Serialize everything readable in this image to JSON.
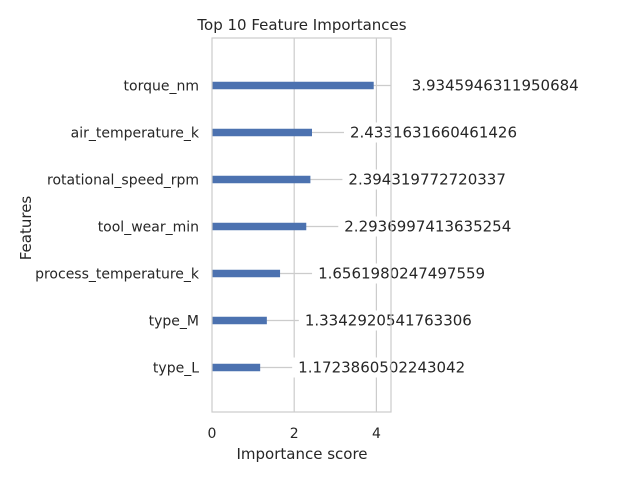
{
  "chart_data": {
    "type": "bar",
    "orientation": "horizontal",
    "title": "Top 10 Feature Importances",
    "xlabel": "Importance score",
    "ylabel": "Features",
    "categories": [
      "torque_nm",
      "air_temperature_k",
      "rotational_speed_rpm",
      "tool_wear_min",
      "process_temperature_k",
      "type_M",
      "type_L"
    ],
    "values": [
      3.9345946311950684,
      2.4331631660461426,
      2.394319772720337,
      2.2936997413635254,
      1.6561980247497559,
      1.3342920541763306,
      1.1723860502243042
    ],
    "value_labels": [
      "3.9345946311950684",
      "2.4331631660461426",
      "2.394319772720337",
      "2.2936997413635254",
      "1.6561980247497559",
      "1.3342920541763306",
      "1.1723860502243042"
    ],
    "x_ticks": [
      0,
      2,
      4
    ],
    "x_tick_labels": [
      "0",
      "2",
      "4"
    ],
    "xlim": [
      0,
      4.3
    ],
    "grid": true,
    "bar_color": "#4c72b0",
    "grid_color": "#cccccc"
  }
}
